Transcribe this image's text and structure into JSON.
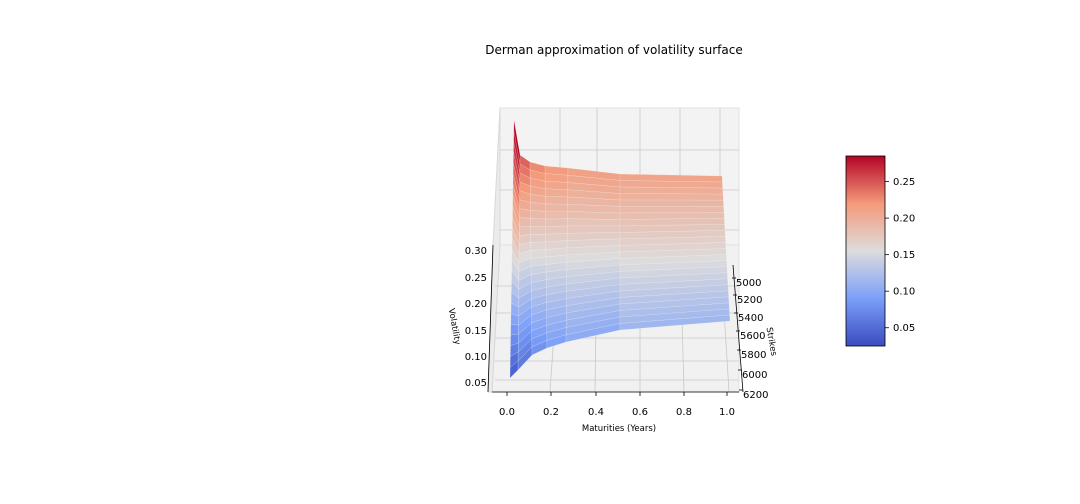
{
  "chart_data": {
    "type": "surface",
    "title": "Derman approximation of volatility surface",
    "xlabel": "Maturities (Years)",
    "ylabel": "Strikes",
    "zlabel": "Volatility",
    "x_ticks": [
      "0.0",
      "0.2",
      "0.4",
      "0.6",
      "0.8",
      "1.0"
    ],
    "y_ticks": [
      "5000",
      "5200",
      "5400",
      "5600",
      "5800",
      "6000",
      "6200"
    ],
    "z_ticks": [
      "0.05",
      "0.10",
      "0.15",
      "0.20",
      "0.25",
      "0.30"
    ],
    "colorbar_ticks": [
      "0.05",
      "0.10",
      "0.15",
      "0.20",
      "0.25"
    ],
    "colormap": "coolwarm",
    "colorbar_range": [
      0.025,
      0.285
    ],
    "maturities": [
      0.02,
      0.04,
      0.08,
      0.12,
      0.25,
      0.5,
      1.0
    ],
    "strikes": [
      5000,
      5200,
      5400,
      5600,
      5800,
      6000,
      6200
    ],
    "surface_top_edge": [
      0.32,
      0.26,
      0.235,
      0.225,
      0.218,
      0.212,
      0.21
    ],
    "surface_bottom_edge": [
      0.03,
      0.045,
      0.07,
      0.085,
      0.095,
      0.105,
      0.12
    ]
  }
}
